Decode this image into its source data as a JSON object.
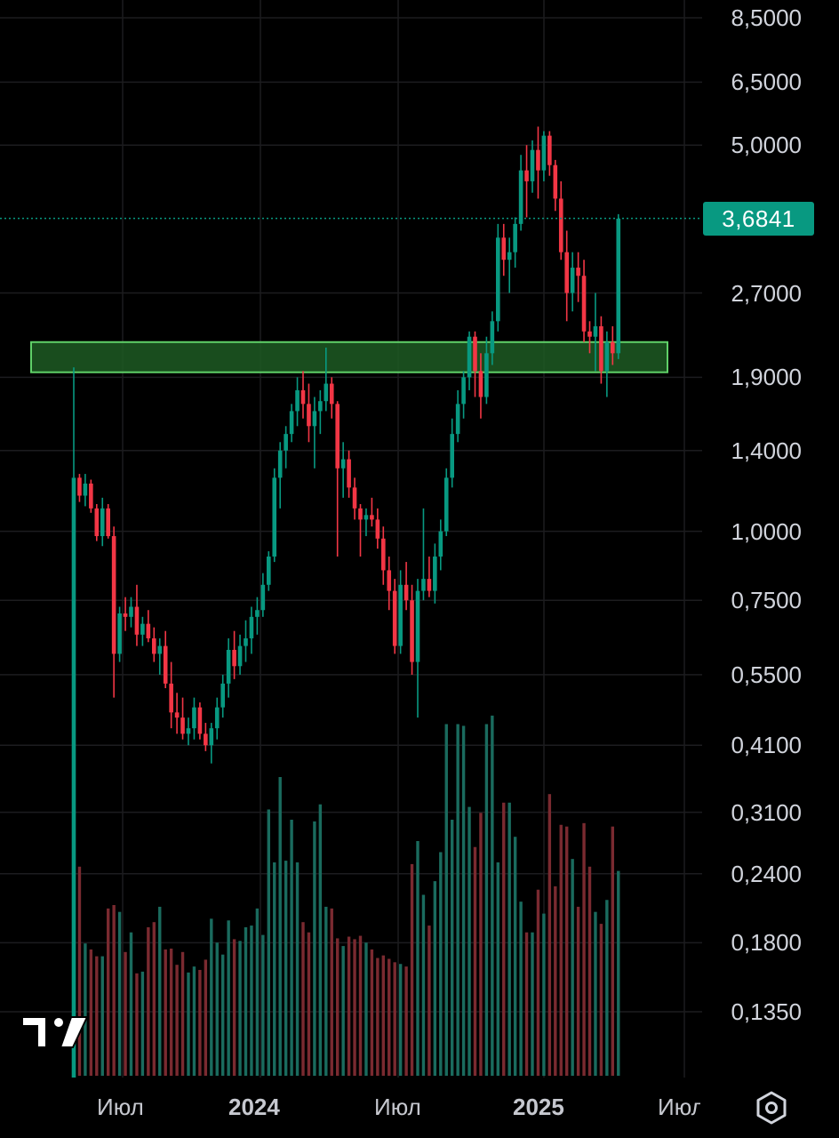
{
  "chart_data": {
    "type": "candlestick",
    "title": "",
    "ylabel": "",
    "xlabel": "",
    "y_scale": "log",
    "ylim": [
      0.115,
      9.2
    ],
    "grid": true,
    "last_price": "3,6841",
    "last_price_value": 3.6841,
    "y_ticks": [
      {
        "label": "8,5000",
        "value": 8.5
      },
      {
        "label": "6,5000",
        "value": 6.5
      },
      {
        "label": "5,0000",
        "value": 5.0
      },
      {
        "label": "2,7000",
        "value": 2.7
      },
      {
        "label": "1,9000",
        "value": 1.9
      },
      {
        "label": "1,4000",
        "value": 1.4
      },
      {
        "label": "1,0000",
        "value": 1.0
      },
      {
        "label": "0,7500",
        "value": 0.75
      },
      {
        "label": "0,5500",
        "value": 0.55
      },
      {
        "label": "0,4100",
        "value": 0.41
      },
      {
        "label": "0,3100",
        "value": 0.31
      },
      {
        "label": "0,2400",
        "value": 0.24
      },
      {
        "label": "0,1800",
        "value": 0.18
      },
      {
        "label": "0,1350",
        "value": 0.135
      }
    ],
    "x_ticks": [
      {
        "label": "Июл",
        "bold": false
      },
      {
        "label": "2024",
        "bold": true
      },
      {
        "label": "Июл",
        "bold": false
      },
      {
        "label": "2025",
        "bold": true
      },
      {
        "label": "Июл",
        "bold": false
      }
    ],
    "zone": {
      "low": 1.94,
      "high": 2.2
    },
    "colors": {
      "up": "#089981",
      "down": "#f23645",
      "up_volume": "#1a6b5e",
      "down_volume": "#7a2a30",
      "zone_fill": "#1d5a23",
      "zone_border": "#5fd068"
    },
    "candles": [
      [
        1.25,
        1.98,
        1.25,
        1.25
      ],
      [
        1.25,
        1.27,
        1.13,
        1.16
      ],
      [
        1.16,
        1.27,
        1.11,
        1.22
      ],
      [
        1.22,
        1.24,
        1.08,
        1.1
      ],
      [
        1.1,
        1.12,
        0.96,
        0.98
      ],
      [
        0.98,
        1.15,
        0.94,
        1.1
      ],
      [
        1.1,
        1.12,
        0.97,
        0.98
      ],
      [
        0.98,
        1.02,
        0.5,
        0.6
      ],
      [
        0.6,
        0.73,
        0.58,
        0.71
      ],
      [
        0.71,
        0.76,
        0.66,
        0.7
      ],
      [
        0.7,
        0.76,
        0.67,
        0.73
      ],
      [
        0.73,
        0.8,
        0.62,
        0.65
      ],
      [
        0.65,
        0.7,
        0.62,
        0.68
      ],
      [
        0.68,
        0.72,
        0.63,
        0.64
      ],
      [
        0.64,
        0.67,
        0.58,
        0.6
      ],
      [
        0.6,
        0.64,
        0.55,
        0.62
      ],
      [
        0.62,
        0.66,
        0.52,
        0.53
      ],
      [
        0.53,
        0.58,
        0.44,
        0.47
      ],
      [
        0.47,
        0.51,
        0.43,
        0.46
      ],
      [
        0.46,
        0.5,
        0.42,
        0.43
      ],
      [
        0.43,
        0.46,
        0.41,
        0.44
      ],
      [
        0.44,
        0.5,
        0.42,
        0.48
      ],
      [
        0.48,
        0.49,
        0.42,
        0.43
      ],
      [
        0.43,
        0.45,
        0.4,
        0.41
      ],
      [
        0.41,
        0.45,
        0.38,
        0.44
      ],
      [
        0.44,
        0.5,
        0.42,
        0.48
      ],
      [
        0.48,
        0.55,
        0.46,
        0.53
      ],
      [
        0.53,
        0.64,
        0.5,
        0.61
      ],
      [
        0.61,
        0.66,
        0.54,
        0.57
      ],
      [
        0.57,
        0.65,
        0.55,
        0.62
      ],
      [
        0.62,
        0.69,
        0.58,
        0.64
      ],
      [
        0.64,
        0.73,
        0.6,
        0.7
      ],
      [
        0.7,
        0.76,
        0.65,
        0.72
      ],
      [
        0.72,
        0.84,
        0.7,
        0.8
      ],
      [
        0.8,
        0.92,
        0.78,
        0.9
      ],
      [
        0.9,
        1.3,
        0.88,
        1.25
      ],
      [
        1.25,
        1.45,
        1.1,
        1.4
      ],
      [
        1.4,
        1.55,
        1.3,
        1.5
      ],
      [
        1.5,
        1.7,
        1.45,
        1.65
      ],
      [
        1.65,
        1.9,
        1.55,
        1.8
      ],
      [
        1.8,
        1.95,
        1.6,
        1.7
      ],
      [
        1.7,
        1.85,
        1.45,
        1.55
      ],
      [
        1.55,
        1.75,
        1.3,
        1.65
      ],
      [
        1.65,
        1.8,
        1.5,
        1.72
      ],
      [
        1.72,
        2.15,
        1.65,
        1.85
      ],
      [
        1.85,
        1.9,
        1.6,
        1.7
      ],
      [
        1.7,
        1.72,
        0.9,
        1.3
      ],
      [
        1.3,
        1.45,
        1.15,
        1.35
      ],
      [
        1.35,
        1.4,
        1.15,
        1.2
      ],
      [
        1.2,
        1.25,
        1.05,
        1.1
      ],
      [
        1.1,
        1.12,
        0.9,
        1.05
      ],
      [
        1.05,
        1.1,
        0.98,
        1.07
      ],
      [
        1.07,
        1.15,
        1.02,
        1.05
      ],
      [
        1.05,
        1.1,
        0.93,
        0.97
      ],
      [
        0.97,
        1.02,
        0.8,
        0.85
      ],
      [
        0.85,
        0.9,
        0.72,
        0.78
      ],
      [
        0.78,
        0.82,
        0.6,
        0.62
      ],
      [
        0.62,
        0.85,
        0.6,
        0.8
      ],
      [
        0.8,
        0.88,
        0.72,
        0.75
      ],
      [
        0.75,
        0.8,
        0.55,
        0.58
      ],
      [
        0.58,
        0.82,
        0.46,
        0.78
      ],
      [
        0.78,
        1.1,
        0.75,
        0.82
      ],
      [
        0.82,
        0.9,
        0.76,
        0.78
      ],
      [
        0.78,
        0.95,
        0.74,
        0.9
      ],
      [
        0.9,
        1.05,
        0.85,
        1.0
      ],
      [
        1.0,
        1.3,
        0.98,
        1.25
      ],
      [
        1.25,
        1.6,
        1.2,
        1.5
      ],
      [
        1.5,
        1.8,
        1.45,
        1.7
      ],
      [
        1.7,
        1.95,
        1.6,
        1.9
      ],
      [
        1.9,
        2.3,
        1.8,
        2.25
      ],
      [
        2.25,
        2.3,
        1.75,
        1.95
      ],
      [
        1.95,
        2.1,
        1.6,
        1.75
      ],
      [
        1.75,
        2.25,
        1.7,
        2.1
      ],
      [
        2.1,
        2.5,
        2.0,
        2.4
      ],
      [
        2.4,
        3.6,
        2.3,
        3.4
      ],
      [
        3.4,
        3.6,
        2.9,
        3.1
      ],
      [
        3.1,
        3.4,
        2.7,
        3.2
      ],
      [
        3.2,
        3.7,
        3.0,
        3.6
      ],
      [
        3.6,
        4.8,
        3.5,
        4.5
      ],
      [
        4.5,
        5.0,
        3.7,
        4.3
      ],
      [
        4.3,
        5.1,
        4.1,
        4.9
      ],
      [
        4.9,
        5.4,
        4.0,
        4.5
      ],
      [
        4.5,
        5.3,
        4.3,
        5.2
      ],
      [
        5.2,
        5.3,
        4.4,
        4.6
      ],
      [
        4.6,
        4.7,
        3.8,
        4.0
      ],
      [
        4.0,
        4.3,
        3.1,
        3.2
      ],
      [
        3.2,
        3.5,
        2.4,
        2.7
      ],
      [
        2.7,
        3.2,
        2.5,
        3.0
      ],
      [
        3.0,
        3.2,
        2.6,
        2.9
      ],
      [
        2.9,
        3.1,
        2.2,
        2.3
      ],
      [
        2.3,
        2.4,
        2.1,
        2.25
      ],
      [
        2.25,
        2.7,
        1.95,
        2.35
      ],
      [
        2.35,
        2.45,
        1.85,
        1.95
      ],
      [
        1.95,
        2.3,
        1.75,
        2.2
      ],
      [
        2.2,
        2.35,
        2.0,
        2.1
      ],
      [
        2.1,
        3.75,
        2.05,
        3.68
      ]
    ],
    "volumes": [
      0.095,
      0.245,
      0.155,
      0.148,
      0.14,
      0.14,
      0.196,
      0.2,
      0.192,
      0.145,
      0.168,
      0.12,
      0.122,
      0.174,
      0.18,
      0.198,
      0.148,
      0.149,
      0.13,
      0.145,
      0.121,
      0.128,
      0.124,
      0.136,
      0.184,
      0.156,
      0.142,
      0.182,
      0.16,
      0.158,
      0.174,
      0.176,
      0.196,
      0.165,
      0.312,
      0.25,
      0.35,
      0.252,
      0.3,
      0.25,
      0.18,
      0.168,
      0.298,
      0.318,
      0.198,
      0.196,
      0.161,
      0.152,
      0.163,
      0.16,
      0.164,
      0.156,
      0.148,
      0.138,
      0.141,
      0.137,
      0.133,
      0.131,
      0.128,
      0.248,
      0.275,
      0.212,
      0.176,
      0.228,
      0.262,
      0.412,
      0.3,
      0.412,
      0.41,
      0.315,
      0.268,
      0.308,
      0.412,
      0.422,
      0.25,
      0.32,
      0.32,
      0.28,
      0.204,
      0.168,
      0.168,
      0.218,
      0.19,
      0.33,
      0.222,
      0.294,
      0.292,
      0.254,
      0.198,
      0.296,
      0.245,
      0.192,
      0.178,
      0.206,
      0.292,
      0.24
    ]
  }
}
